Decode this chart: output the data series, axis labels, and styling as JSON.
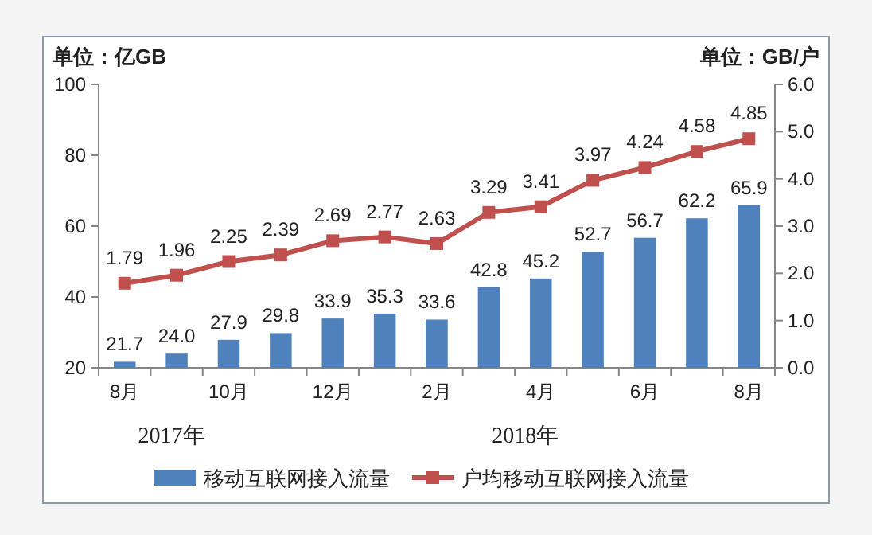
{
  "chart_data": {
    "type": "bar",
    "ylabel": "单位：亿GB",
    "y2label": "单位：GB/户",
    "categories": [
      "8月",
      null,
      "10月",
      null,
      "12月",
      null,
      "2月",
      null,
      "4月",
      null,
      "6月",
      null,
      "8月"
    ],
    "series": [
      {
        "name": "移动互联网接入流量",
        "color": "#4f81bd",
        "values": [
          21.7,
          24.0,
          27.9,
          29.8,
          33.9,
          35.3,
          33.6,
          42.8,
          45.2,
          52.7,
          56.7,
          62.2,
          65.9
        ],
        "value_labels": [
          "21.7",
          "24.0",
          "27.9",
          "29.8",
          "33.9",
          "35.3",
          "33.6",
          "42.8",
          "45.2",
          "52.7",
          "56.7",
          "62.2",
          "65.9"
        ]
      },
      {
        "name": "户均移动互联网接入流量",
        "type": "line",
        "axis": "y2",
        "color": "#c0504d",
        "values": [
          1.79,
          1.96,
          2.25,
          2.39,
          2.69,
          2.77,
          2.63,
          3.29,
          3.41,
          3.97,
          4.24,
          4.58,
          4.85
        ],
        "value_labels": [
          "1.79",
          "1.96",
          "2.25",
          "2.39",
          "2.69",
          "2.77",
          "2.63",
          "3.29",
          "3.41",
          "3.97",
          "4.24",
          "4.58",
          "4.85"
        ]
      }
    ],
    "marker": "square",
    "line_style": "solid",
    "ylim": [
      20,
      100
    ],
    "yticks": [
      20,
      40,
      60,
      80,
      100
    ],
    "y2lim": [
      0,
      6
    ],
    "y2ticks": [
      {
        "value": 0,
        "label": "0.0"
      },
      {
        "value": 1,
        "label": "1.0"
      },
      {
        "value": 2,
        "label": "2.0"
      },
      {
        "value": 3,
        "label": "3.0"
      },
      {
        "value": 4,
        "label": "4.0"
      },
      {
        "value": 5,
        "label": "5.0"
      },
      {
        "value": 6,
        "label": "6.0"
      }
    ],
    "legend": "bottom",
    "annotations": [
      "2017年",
      "2018年"
    ]
  }
}
